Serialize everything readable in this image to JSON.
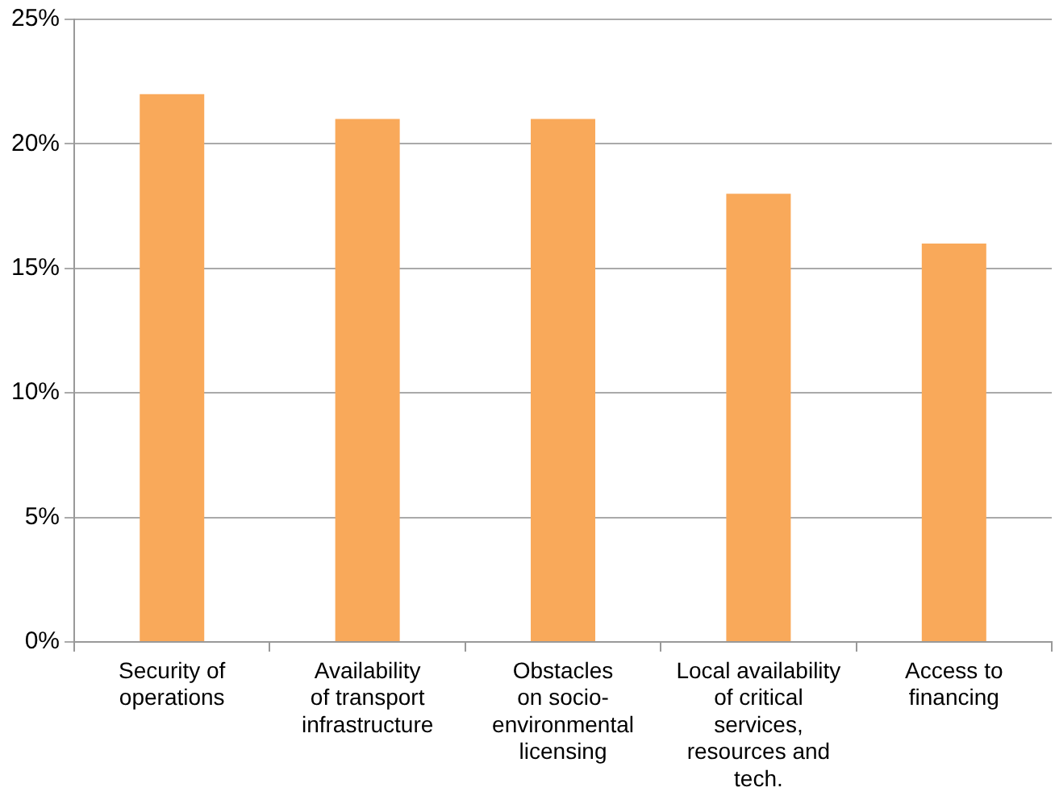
{
  "chart_data": {
    "type": "bar",
    "categories": [
      "Security of\noperations",
      "Availability\nof transport\ninfrastructure",
      "Obstacles\non socio-\nenvironmental\nlicensing",
      "Local availability\nof critical\nservices,\nresources and\ntech.",
      "Access to\nfinancing"
    ],
    "values": [
      22,
      21,
      21,
      18,
      16
    ],
    "color": "#f9a95a",
    "ylim": [
      0,
      25
    ],
    "yticks": [
      {
        "value": 0,
        "label": "0%"
      },
      {
        "value": 5,
        "label": "5%"
      },
      {
        "value": 10,
        "label": "10%"
      },
      {
        "value": 15,
        "label": "15%"
      },
      {
        "value": 20,
        "label": "20%"
      },
      {
        "value": 25,
        "label": "25%"
      }
    ],
    "grid": "y",
    "legend": false
  }
}
